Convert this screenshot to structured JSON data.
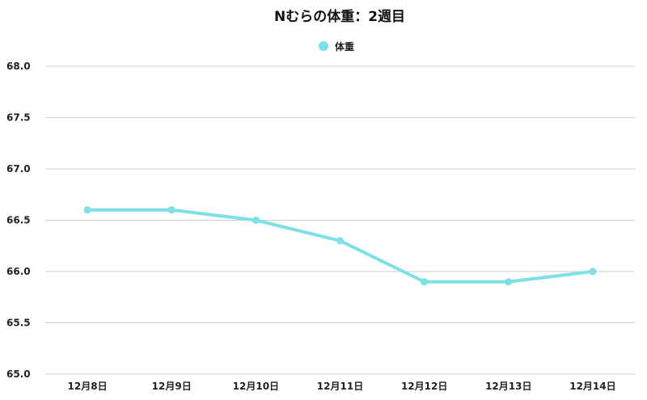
{
  "chart_data": {
    "type": "line",
    "title": "Nむらの体重：2週目",
    "xlabel": "",
    "ylabel": "",
    "categories": [
      "12月8日",
      "12月9日",
      "12月10日",
      "12月11日",
      "12月12日",
      "12月13日",
      "12月14日"
    ],
    "series": [
      {
        "name": "体重",
        "color": "#7de0e6",
        "values": [
          66.6,
          66.6,
          66.5,
          66.3,
          65.9,
          65.9,
          66.0
        ]
      }
    ],
    "ylim": [
      65.0,
      68.0
    ],
    "yticks": [
      "65.0",
      "65.5",
      "66.0",
      "66.5",
      "67.0",
      "67.5",
      "68.0"
    ],
    "grid": true,
    "legend": "top-center"
  }
}
